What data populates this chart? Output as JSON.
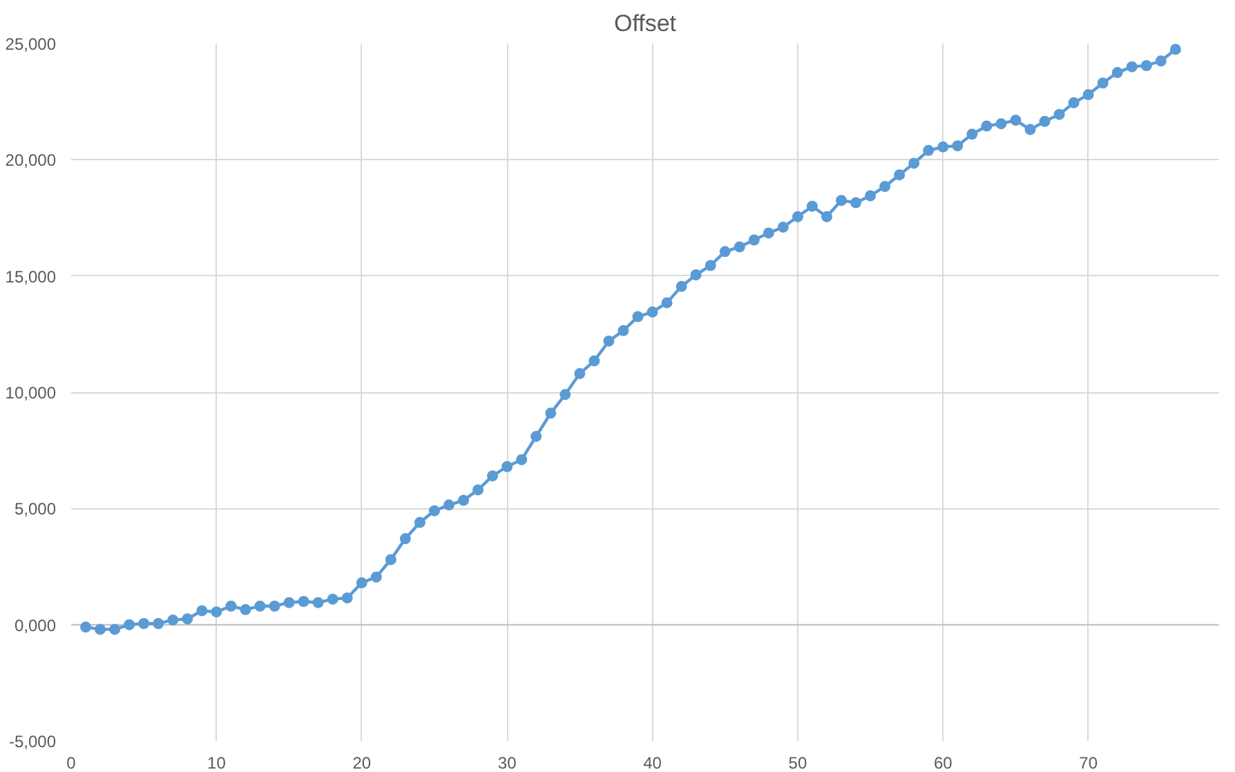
{
  "chart_data": {
    "type": "line",
    "title": "Offset",
    "x": [
      1,
      2,
      3,
      4,
      5,
      6,
      7,
      8,
      9,
      10,
      11,
      12,
      13,
      14,
      15,
      16,
      17,
      18,
      19,
      20,
      21,
      22,
      23,
      24,
      25,
      26,
      27,
      28,
      29,
      30,
      31,
      32,
      33,
      34,
      35,
      36,
      37,
      38,
      39,
      40,
      41,
      42,
      43,
      44,
      45,
      46,
      47,
      48,
      49,
      50,
      51,
      52,
      53,
      54,
      55,
      56,
      57,
      58,
      59,
      60,
      61,
      62,
      63,
      64,
      65,
      66,
      67,
      68,
      69,
      70,
      71,
      72,
      73,
      74,
      75,
      76
    ],
    "series": [
      {
        "color": "#5b9bd5",
        "values": [
          -100,
          -200,
          -200,
          0,
          50,
          50,
          200,
          250,
          600,
          550,
          800,
          650,
          800,
          800,
          950,
          1000,
          950,
          1100,
          1150,
          1800,
          2050,
          2800,
          3700,
          4400,
          4900,
          5150,
          5350,
          5800,
          6400,
          6800,
          7100,
          8100,
          9100,
          9900,
          10800,
          11350,
          12200,
          12650,
          13250,
          13450,
          13850,
          14550,
          15050,
          15450,
          16050,
          16250,
          16550,
          16850,
          17100,
          17550,
          18000,
          17550,
          18250,
          18150,
          18450,
          18850,
          19350,
          19850,
          20400,
          20550,
          20600,
          21100,
          21450,
          21550,
          21700,
          21300,
          21650,
          21950,
          22450,
          22800,
          23300,
          23750,
          24000,
          24050,
          24250,
          24750
        ]
      }
    ],
    "xlim": [
      0,
      79
    ],
    "xticks": [
      0,
      10,
      20,
      30,
      40,
      50,
      60,
      70
    ],
    "ylim": [
      -5000,
      25000
    ],
    "yticks": [
      {
        "value": -5000,
        "label": "-5,000"
      },
      {
        "value": 0,
        "label": "0,000"
      },
      {
        "value": 5000,
        "label": "5,000"
      },
      {
        "value": 10000,
        "label": "10,000"
      },
      {
        "value": 15000,
        "label": "15,000"
      },
      {
        "value": 20000,
        "label": "20,000"
      },
      {
        "value": 25000,
        "label": "25,000"
      }
    ],
    "grid": true,
    "marker": "circle",
    "line_style": "solid"
  }
}
